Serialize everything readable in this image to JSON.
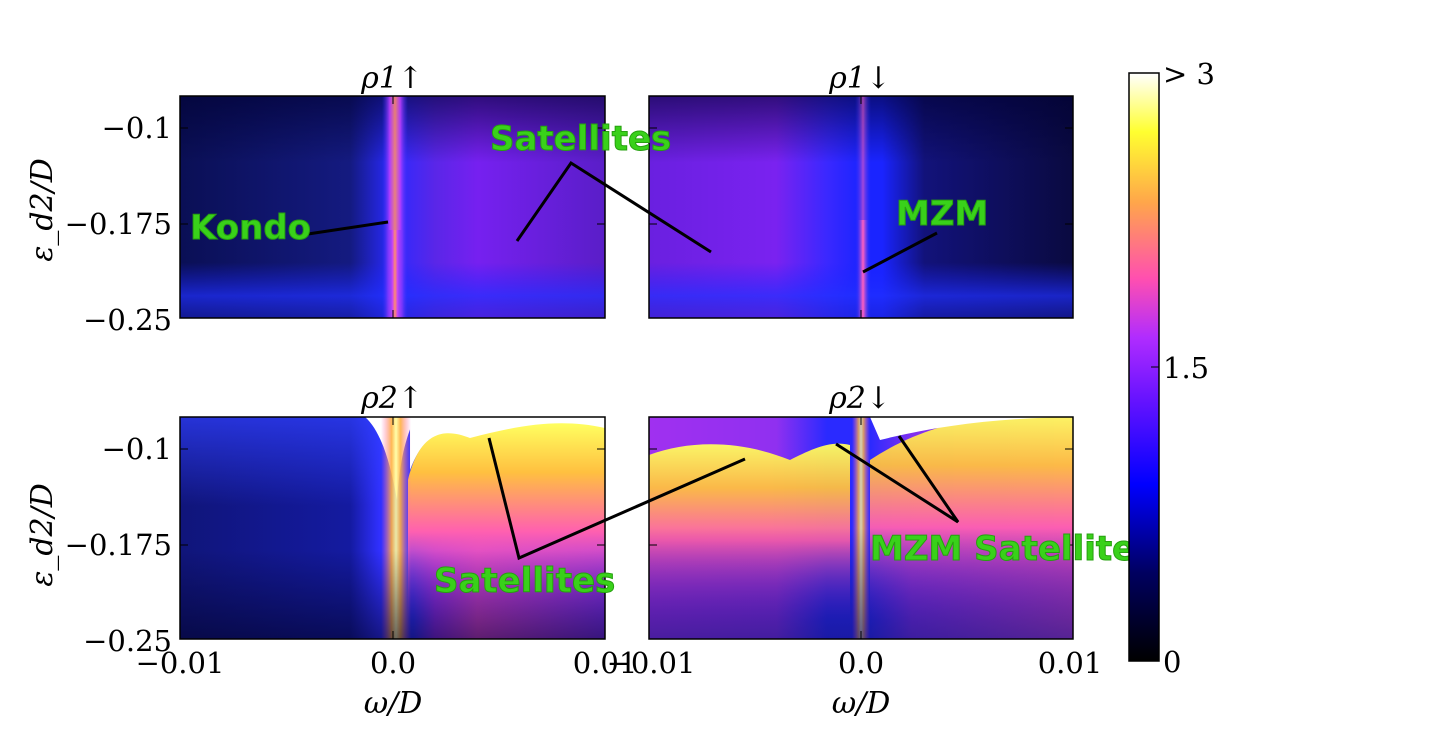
{
  "chart_data": [
    {
      "type": "heatmap",
      "title": "ρ1↑",
      "ylabel": "ε_d2/D",
      "xlabel": "",
      "xlim": [
        -0.01,
        0.01
      ],
      "ylim": [
        -0.25,
        -0.075
      ],
      "yticks": [
        -0.1,
        -0.175,
        -0.25
      ],
      "ytick_labels": [
        "−0.1",
        "−0.175",
        "−0.25"
      ],
      "annotations": [
        {
          "text": "Kondo"
        },
        {
          "text": "Satellites"
        }
      ]
    },
    {
      "type": "heatmap",
      "title": "ρ1↓",
      "xlim": [
        -0.01,
        0.01
      ],
      "ylim": [
        -0.25,
        -0.075
      ],
      "annotations": [
        {
          "text": "MZM"
        }
      ]
    },
    {
      "type": "heatmap",
      "title": "ρ2↑",
      "ylabel": "ε_d2/D",
      "xlabel": "ω/D",
      "xlim": [
        -0.01,
        0.01
      ],
      "ylim": [
        -0.25,
        -0.075
      ],
      "xticks": [
        -0.01,
        0.0,
        0.01
      ],
      "xtick_labels": [
        "−0.01",
        "0.0",
        "0.01"
      ],
      "yticks": [
        -0.1,
        -0.175,
        -0.25
      ],
      "ytick_labels": [
        "−0.1",
        "−0.175",
        "−0.25"
      ],
      "annotations": [
        {
          "text": "Satellites"
        }
      ]
    },
    {
      "type": "heatmap",
      "title": "ρ2↓",
      "xlabel": "ω/D",
      "xlim": [
        -0.01,
        0.01
      ],
      "ylim": [
        -0.25,
        -0.075
      ],
      "xticks": [
        -0.01,
        0.0,
        0.01
      ],
      "xtick_labels": [
        "−0.01",
        "0.0",
        "0.01"
      ],
      "annotations": [
        {
          "text": "MZM Satellites"
        }
      ]
    }
  ],
  "colorbar": {
    "range": [
      0,
      3
    ],
    "ticks": [
      0,
      1.5,
      3
    ],
    "tick_labels": [
      "0",
      "1.5",
      "> 3"
    ],
    "colormap": "gnuplot2",
    "colors": [
      "#000000",
      "#0000ff",
      "#8a1cff",
      "#ff4fb0",
      "#ffc24a",
      "#ffff33",
      "#ffffff"
    ]
  },
  "annotation_color": "#39d11a"
}
